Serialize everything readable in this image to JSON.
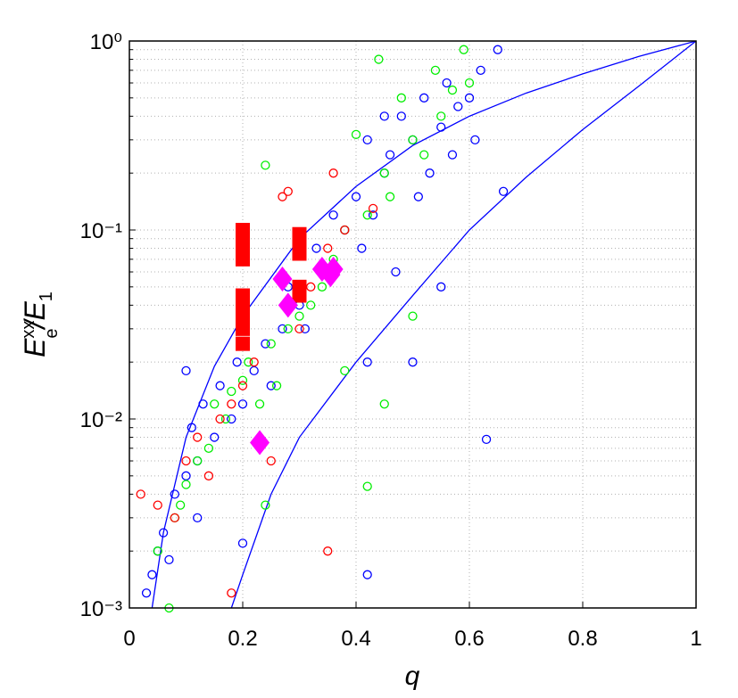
{
  "chart_data": {
    "type": "scatter",
    "x_label": "q",
    "y_label": [
      "E",
      "xx",
      "e",
      "/E",
      "1"
    ],
    "xlim": [
      0,
      1
    ],
    "ylim": [
      0.001,
      1
    ],
    "log_y": true,
    "grid": true,
    "xticks": [
      0,
      0.2,
      0.4,
      0.6,
      0.8,
      1
    ],
    "yticks": [
      {
        "value": 0.001,
        "label": "10⁻³"
      },
      {
        "value": 0.01,
        "label": "10⁻²"
      },
      {
        "value": 0.1,
        "label": "10⁻¹"
      },
      {
        "value": 1,
        "label": "10⁰"
      }
    ],
    "yminorticks": [
      0.002,
      0.003,
      0.004,
      0.005,
      0.006,
      0.007,
      0.008,
      0.009,
      0.02,
      0.03,
      0.04,
      0.05,
      0.06,
      0.07,
      0.08,
      0.09,
      0.2,
      0.3,
      0.4,
      0.5,
      0.6,
      0.7,
      0.8,
      0.9
    ],
    "series": [
      {
        "style": "line",
        "color": "#0000ff",
        "x": [
          0.04,
          0.06,
          0.1,
          0.15,
          0.2,
          0.3,
          0.4,
          0.5,
          0.6,
          0.7,
          0.8,
          0.9,
          1
        ],
        "values": [
          0.001,
          0.0025,
          0.008,
          0.019,
          0.035,
          0.09,
          0.17,
          0.28,
          0.4,
          0.53,
          0.67,
          0.83,
          1
        ]
      },
      {
        "style": "line",
        "color": "#0000ff",
        "x": [
          0.18,
          0.2,
          0.25,
          0.3,
          0.4,
          0.5,
          0.6,
          0.7,
          0.8,
          0.9,
          1
        ],
        "values": [
          0.001,
          0.0015,
          0.004,
          0.008,
          0.02,
          0.045,
          0.1,
          0.19,
          0.34,
          0.58,
          1
        ]
      },
      {
        "style": "circle",
        "color": "#0000ff",
        "x": [
          0.03,
          0.04,
          0.05,
          0.06,
          0.07,
          0.08,
          0.1,
          0.11,
          0.12,
          0.13,
          0.15,
          0.16,
          0.18,
          0.19,
          0.2,
          0.22,
          0.24,
          0.25,
          0.27,
          0.28,
          0.3,
          0.31,
          0.33,
          0.35,
          0.36,
          0.38,
          0.4,
          0.41,
          0.42,
          0.43,
          0.45,
          0.46,
          0.47,
          0.48,
          0.5,
          0.51,
          0.52,
          0.53,
          0.55,
          0.56,
          0.57,
          0.58,
          0.6,
          0.61,
          0.62,
          0.63,
          0.65,
          0.66,
          0.45,
          0.42,
          0.5,
          0.55,
          0.1,
          0.12,
          0.2,
          0.42
        ],
        "values": [
          0.0012,
          0.0015,
          0.002,
          0.0025,
          0.0018,
          0.004,
          0.005,
          0.009,
          0.006,
          0.012,
          0.008,
          0.015,
          0.01,
          0.02,
          0.012,
          0.018,
          0.025,
          0.015,
          0.03,
          0.05,
          0.04,
          0.03,
          0.08,
          0.06,
          0.12,
          0.1,
          0.15,
          0.08,
          0.3,
          0.12,
          0.2,
          0.25,
          0.06,
          0.4,
          0.3,
          0.15,
          0.5,
          0.2,
          0.35,
          0.6,
          0.25,
          0.45,
          0.5,
          0.3,
          0.7,
          0.0078,
          0.9,
          0.16,
          0.4,
          0.02,
          0.02,
          0.05,
          0.018,
          0.003,
          0.0022,
          0.0015
        ]
      },
      {
        "style": "circle",
        "color": "#00ee00",
        "x": [
          0.05,
          0.07,
          0.08,
          0.09,
          0.1,
          0.12,
          0.14,
          0.15,
          0.17,
          0.18,
          0.2,
          0.21,
          0.23,
          0.24,
          0.25,
          0.26,
          0.28,
          0.3,
          0.32,
          0.34,
          0.36,
          0.38,
          0.4,
          0.42,
          0.44,
          0.45,
          0.46,
          0.48,
          0.5,
          0.52,
          0.54,
          0.55,
          0.57,
          0.59,
          0.6,
          0.42,
          0.45,
          0.38,
          0.24,
          0.5
        ],
        "values": [
          0.002,
          0.001,
          0.003,
          0.0035,
          0.0045,
          0.006,
          0.007,
          0.012,
          0.01,
          0.014,
          0.016,
          0.02,
          0.012,
          0.22,
          0.025,
          0.015,
          0.03,
          0.035,
          0.04,
          0.05,
          0.07,
          0.1,
          0.32,
          0.12,
          0.8,
          0.2,
          0.15,
          0.5,
          0.3,
          0.25,
          0.7,
          0.4,
          0.55,
          0.9,
          0.6,
          0.0044,
          0.012,
          0.018,
          0.0035,
          0.035
        ]
      },
      {
        "style": "circle",
        "color": "#ff0000",
        "x": [
          0.02,
          0.05,
          0.08,
          0.1,
          0.12,
          0.14,
          0.16,
          0.18,
          0.2,
          0.22,
          0.25,
          0.27,
          0.28,
          0.3,
          0.32,
          0.35,
          0.36,
          0.38,
          0.43,
          0.18,
          0.35
        ],
        "values": [
          0.004,
          0.0035,
          0.003,
          0.006,
          0.008,
          0.005,
          0.01,
          0.012,
          0.015,
          0.02,
          0.006,
          0.15,
          0.16,
          0.03,
          0.05,
          0.08,
          0.2,
          0.1,
          0.13,
          0.0012,
          0.002
        ]
      },
      {
        "style": "square",
        "color": "#ff0000",
        "x": [
          0.2,
          0.2,
          0.2,
          0.2,
          0.2,
          0.2,
          0.2,
          0.2,
          0.2,
          0.3,
          0.3,
          0.3,
          0.3,
          0.3
        ],
        "values": [
          0.1,
          0.09,
          0.08,
          0.07,
          0.045,
          0.04,
          0.035,
          0.03,
          0.025,
          0.095,
          0.085,
          0.075,
          0.05,
          0.045
        ]
      },
      {
        "style": "diamond",
        "color": "#ff00ff",
        "x": [
          0.27,
          0.28,
          0.34,
          0.36,
          0.355,
          0.23
        ],
        "values": [
          0.055,
          0.04,
          0.062,
          0.062,
          0.058,
          0.0075
        ]
      }
    ]
  }
}
